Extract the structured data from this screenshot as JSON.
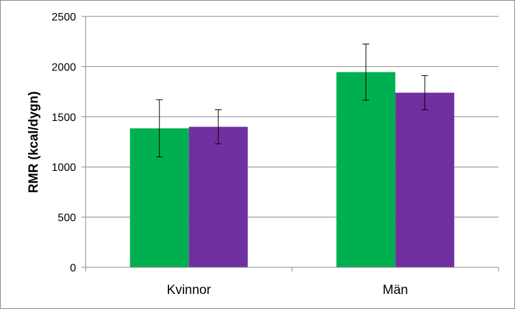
{
  "chart_data": {
    "type": "bar",
    "ylabel": "RMR (kcal/dygn)",
    "xlabel": "",
    "categories": [
      "Kvinnor",
      "Män"
    ],
    "ylim": [
      0,
      2500
    ],
    "yticks": [
      0,
      500,
      1000,
      1500,
      2000,
      2500
    ],
    "grid": true,
    "legend": "none",
    "series": [
      {
        "color": "#00b050",
        "values": [
          1385,
          1945
        ],
        "errors": [
          285,
          280
        ]
      },
      {
        "color": "#7030a0",
        "values": [
          1400,
          1740
        ],
        "errors": [
          170,
          170
        ]
      }
    ]
  }
}
